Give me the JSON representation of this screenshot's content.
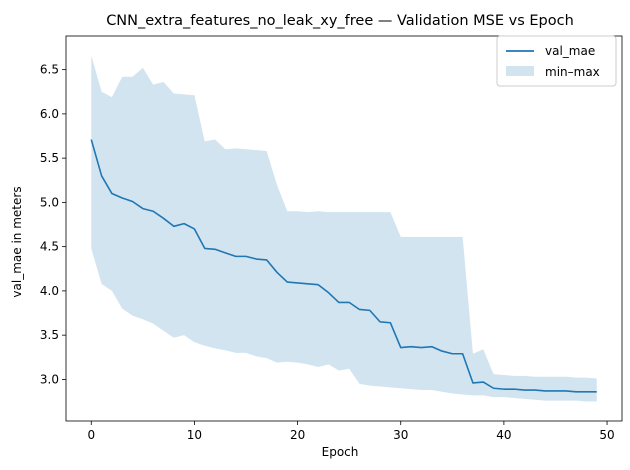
{
  "chart_data": {
    "type": "line",
    "title": "CNN_extra_features_no_leak_xy_free — Validation MSE vs Epoch",
    "xlabel": "Epoch",
    "ylabel": "val_mae in meters",
    "xlim": [
      -2.45,
      51.45
    ],
    "ylim": [
      2.53,
      6.88
    ],
    "xticks": [
      0,
      10,
      20,
      30,
      40,
      50
    ],
    "yticks": [
      3.0,
      3.5,
      4.0,
      4.5,
      5.0,
      5.5,
      6.0,
      6.5
    ],
    "ytick_labels": [
      "3.0",
      "3.5",
      "4.0",
      "4.5",
      "5.0",
      "5.5",
      "6.0",
      "6.5"
    ],
    "grid": false,
    "legend_position": "top-right",
    "x": [
      0,
      1,
      2,
      3,
      4,
      5,
      6,
      7,
      8,
      9,
      10,
      11,
      12,
      13,
      14,
      15,
      16,
      17,
      18,
      19,
      20,
      21,
      22,
      23,
      24,
      25,
      26,
      27,
      28,
      29,
      30,
      31,
      32,
      33,
      34,
      35,
      36,
      37,
      38,
      39,
      40,
      41,
      42,
      43,
      44,
      45,
      46,
      47,
      48,
      49
    ],
    "series": [
      {
        "name": "val_mae",
        "color": "#1f77b4",
        "values": [
          5.71,
          5.3,
          5.1,
          5.05,
          5.01,
          4.93,
          4.9,
          4.82,
          4.73,
          4.76,
          4.7,
          4.48,
          4.47,
          4.43,
          4.39,
          4.39,
          4.36,
          4.35,
          4.21,
          4.1,
          4.09,
          4.08,
          4.07,
          3.98,
          3.87,
          3.87,
          3.79,
          3.78,
          3.65,
          3.64,
          3.36,
          3.37,
          3.36,
          3.37,
          3.32,
          3.29,
          3.29,
          2.96,
          2.97,
          2.9,
          2.89,
          2.89,
          2.88,
          2.88,
          2.87,
          2.87,
          2.87,
          2.86,
          2.86,
          2.86
        ]
      }
    ],
    "band": {
      "name": "min–max",
      "color": "#1f77b4",
      "opacity": 0.2,
      "lower": [
        4.48,
        4.08,
        4.0,
        3.8,
        3.72,
        3.68,
        3.63,
        3.55,
        3.47,
        3.5,
        3.42,
        3.38,
        3.35,
        3.33,
        3.3,
        3.3,
        3.26,
        3.24,
        3.19,
        3.2,
        3.19,
        3.17,
        3.14,
        3.17,
        3.1,
        3.12,
        2.95,
        2.93,
        2.92,
        2.91,
        2.9,
        2.89,
        2.88,
        2.88,
        2.86,
        2.84,
        2.83,
        2.82,
        2.82,
        2.8,
        2.8,
        2.79,
        2.78,
        2.77,
        2.76,
        2.76,
        2.76,
        2.76,
        2.75,
        2.75
      ],
      "upper": [
        6.66,
        6.25,
        6.19,
        6.42,
        6.42,
        6.52,
        6.33,
        6.36,
        6.23,
        6.22,
        6.21,
        5.69,
        5.71,
        5.6,
        5.61,
        5.6,
        5.59,
        5.58,
        5.2,
        4.9,
        4.9,
        4.89,
        4.9,
        4.89,
        4.89,
        4.89,
        4.89,
        4.89,
        4.89,
        4.89,
        4.61,
        4.61,
        4.61,
        4.61,
        4.61,
        4.61,
        4.61,
        3.29,
        3.34,
        3.06,
        3.05,
        3.04,
        3.04,
        3.03,
        3.03,
        3.03,
        3.03,
        3.02,
        3.02,
        3.01
      ]
    }
  }
}
